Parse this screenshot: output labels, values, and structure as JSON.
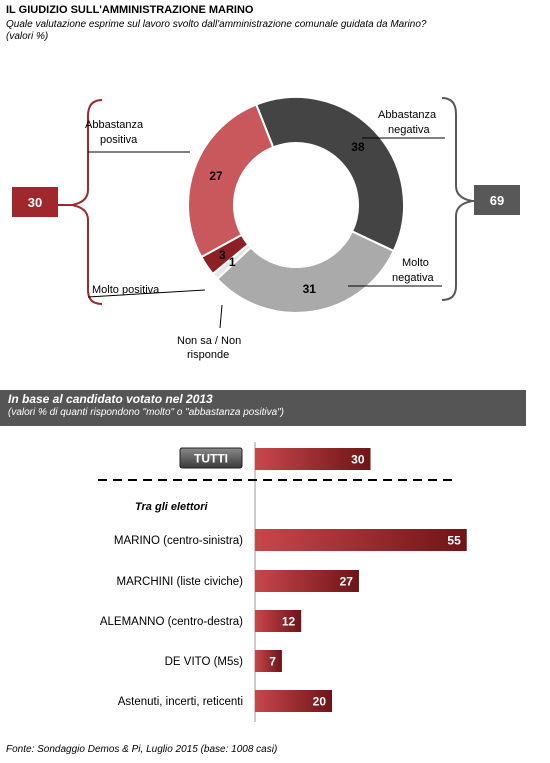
{
  "header": {
    "title": "IL GIUDIZIO SULL'AMMINISTRAZIONE MARINO",
    "subtitle": "Quale valutazione esprime sul lavoro svolto dall'amministrazione comunale guidata da Marino?",
    "note": "(valori %)"
  },
  "summary": {
    "positive_total": "30",
    "negative_total": "69"
  },
  "colors": {
    "molto_negativa": "#aaaaaa",
    "abbastanza_negativa": "#444444",
    "abbastanza_positiva": "#c9585c",
    "molto_positiva": "#8e1f24",
    "non_sa": "#e6e6e6",
    "accent_red": "#a0282c",
    "dark_grey": "#585858"
  },
  "section": {
    "title": "In base al candidato votato nel 2013",
    "subtitle": "(valori % di quanti rispondono \"molto\" o \"abbastanza positiva\")",
    "group_label": "Tra gli elettori",
    "total_label": "TUTTI"
  },
  "chart_data": [
    {
      "type": "pie",
      "slices": [
        {
          "label": "Abbastanza negativa",
          "value": 38,
          "color": "#444444"
        },
        {
          "label": "Molto negativa",
          "value": 31,
          "color": "#aaaaaa"
        },
        {
          "label": "Non sa / Non risponde",
          "value": 1,
          "color": "#e6e6e6"
        },
        {
          "label": "Molto positiva",
          "value": 3,
          "color": "#8e1f24"
        },
        {
          "label": "Abbastanza positiva",
          "value": 27,
          "color": "#c9585c"
        }
      ]
    },
    {
      "type": "bar",
      "orientation": "horizontal",
      "categories": [
        "TUTTI",
        "MARINO (centro-sinistra)",
        "MARCHINI (liste civiche)",
        "ALEMANNO (centro-destra)",
        "DE VITO (M5s)",
        "Astenuti, incerti, reticenti"
      ],
      "values": [
        30,
        55,
        27,
        12,
        7,
        20
      ]
    }
  ],
  "footer": "Fonte: Sondaggio Demos & Pi, Luglio 2015 (base: 1008 casi)"
}
